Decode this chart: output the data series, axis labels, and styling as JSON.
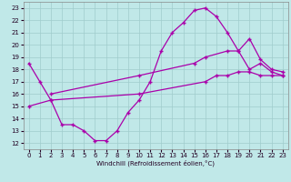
{
  "xlabel": "Windchill (Refroidissement éolien,°C)",
  "bg_color": "#c0e8e8",
  "grid_color": "#a0cccc",
  "line_color": "#aa00aa",
  "x_ticks": [
    0,
    1,
    2,
    3,
    4,
    5,
    6,
    7,
    8,
    9,
    10,
    11,
    12,
    13,
    14,
    15,
    16,
    17,
    18,
    19,
    20,
    21,
    22,
    23
  ],
  "y_ticks": [
    12,
    13,
    14,
    15,
    16,
    17,
    18,
    19,
    20,
    21,
    22,
    23
  ],
  "ylim": [
    11.5,
    23.5
  ],
  "xlim": [
    -0.5,
    23.5
  ],
  "line1_x": [
    0,
    1,
    2,
    3,
    4,
    5,
    6,
    7,
    8,
    9,
    10,
    11,
    12,
    13,
    14,
    15,
    16,
    17,
    18,
    19,
    20,
    21,
    22,
    23
  ],
  "line1_y": [
    18.5,
    17.0,
    15.5,
    13.5,
    13.5,
    13.0,
    12.2,
    12.2,
    13.0,
    14.5,
    15.5,
    17.0,
    19.5,
    21.0,
    21.8,
    22.8,
    23.0,
    22.3,
    21.0,
    19.5,
    18.0,
    18.5,
    17.8,
    17.5
  ],
  "line2_x": [
    2,
    10,
    15,
    16,
    18,
    19,
    20,
    21,
    22,
    23
  ],
  "line2_y": [
    16.0,
    17.5,
    18.5,
    19.0,
    19.5,
    19.5,
    20.5,
    18.8,
    18.0,
    17.8
  ],
  "line3_x": [
    0,
    2,
    10,
    16,
    17,
    18,
    19,
    20,
    21,
    22,
    23
  ],
  "line3_y": [
    15.0,
    15.5,
    16.0,
    17.0,
    17.5,
    17.5,
    17.8,
    17.8,
    17.5,
    17.5,
    17.5
  ]
}
